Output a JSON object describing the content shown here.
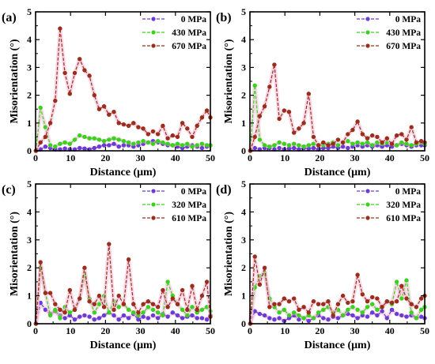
{
  "figure": {
    "colors": {
      "axis": "#000000",
      "s0": "#6a3bd8",
      "s1": "#3bd11e",
      "s2": "#9b2d1c",
      "glow": "#f3b9d4"
    }
  },
  "chart_data": [
    {
      "type": "line",
      "panel_label": "(a)",
      "xlabel": "Distance (μm)",
      "ylabel": "Misorientation (°)",
      "xlim": [
        0,
        50
      ],
      "ylim": [
        0,
        5
      ],
      "xticks": [
        0,
        10,
        20,
        30,
        40,
        50
      ],
      "yticks": [
        0,
        1,
        2,
        3,
        4,
        5
      ],
      "legend_position": "top-right",
      "x": [
        0.1,
        1.4,
        2.8,
        4.2,
        5.6,
        7.0,
        8.4,
        9.8,
        11.2,
        12.6,
        14.0,
        15.4,
        16.8,
        18.2,
        19.6,
        21.0,
        22.4,
        23.8,
        25.2,
        26.6,
        28.0,
        29.4,
        30.8,
        32.2,
        33.6,
        35.0,
        36.4,
        37.8,
        39.2,
        40.6,
        42.0,
        43.4,
        44.8,
        46.2,
        47.6,
        49.0,
        50.0
      ],
      "series": [
        {
          "name": "0 MPa",
          "values": [
            0.0,
            0.05,
            0.15,
            0.1,
            0.05,
            0.05,
            0.08,
            0.05,
            0.05,
            0.1,
            0.08,
            0.05,
            0.1,
            0.15,
            0.2,
            0.2,
            0.25,
            0.15,
            0.2,
            0.2,
            0.15,
            0.2,
            0.25,
            0.3,
            0.35,
            0.3,
            0.25,
            0.2,
            0.2,
            0.15,
            0.1,
            0.15,
            0.2,
            0.15,
            0.1,
            0.15,
            0.2
          ]
        },
        {
          "name": "430 MPa",
          "values": [
            0.0,
            1.55,
            0.85,
            0.2,
            0.15,
            0.25,
            0.3,
            0.25,
            0.4,
            0.55,
            0.5,
            0.45,
            0.45,
            0.4,
            0.35,
            0.4,
            0.45,
            0.4,
            0.35,
            0.3,
            0.25,
            0.3,
            0.35,
            0.3,
            0.25,
            0.35,
            0.3,
            0.25,
            0.2,
            0.25,
            0.2,
            0.25,
            0.15,
            0.2,
            0.25,
            0.2,
            0.2
          ]
        },
        {
          "name": "670 MPa",
          "values": [
            0.0,
            0.3,
            0.5,
            1.0,
            1.8,
            4.4,
            2.8,
            2.05,
            2.8,
            3.3,
            2.9,
            2.7,
            2.0,
            1.5,
            1.6,
            1.3,
            1.4,
            1.0,
            0.95,
            0.9,
            1.0,
            0.85,
            0.8,
            0.6,
            0.7,
            0.6,
            0.9,
            0.45,
            0.55,
            0.5,
            1.0,
            0.8,
            0.5,
            0.9,
            1.2,
            1.45,
            1.2
          ]
        }
      ]
    },
    {
      "type": "line",
      "panel_label": "(b)",
      "xlabel": "Distance (μm)",
      "ylabel": "Misorientation (°)",
      "xlim": [
        0,
        50
      ],
      "ylim": [
        0,
        5
      ],
      "xticks": [
        0,
        10,
        20,
        30,
        40,
        50
      ],
      "yticks": [
        0,
        1,
        2,
        3,
        4,
        5
      ],
      "legend_position": "top-right",
      "x": [
        0.1,
        1.4,
        2.8,
        4.2,
        5.6,
        7.0,
        8.4,
        9.8,
        11.2,
        12.6,
        14.0,
        15.4,
        16.8,
        18.2,
        19.6,
        21.0,
        22.4,
        23.8,
        25.2,
        26.6,
        28.0,
        29.4,
        30.8,
        32.2,
        33.6,
        35.0,
        36.4,
        37.8,
        39.2,
        40.6,
        42.0,
        43.4,
        44.8,
        46.2,
        47.6,
        49.0,
        50.0
      ],
      "series": [
        {
          "name": "0 MPa",
          "values": [
            0.0,
            0.1,
            0.05,
            0.1,
            0.1,
            0.05,
            0.1,
            0.05,
            0.08,
            0.1,
            0.05,
            0.1,
            0.08,
            0.1,
            0.05,
            0.1,
            0.1,
            0.15,
            0.1,
            0.15,
            0.1,
            0.15,
            0.2,
            0.15,
            0.2,
            0.15,
            0.2,
            0.15,
            0.2,
            0.15,
            0.2,
            0.25,
            0.2,
            0.15,
            0.2,
            0.2,
            0.2
          ]
        },
        {
          "name": "430 MPa",
          "values": [
            0.0,
            2.35,
            0.4,
            0.2,
            0.15,
            0.2,
            0.3,
            0.25,
            0.2,
            0.25,
            0.2,
            0.15,
            0.2,
            0.25,
            0.2,
            0.2,
            0.25,
            0.3,
            0.2,
            0.3,
            0.35,
            0.25,
            0.3,
            0.25,
            0.3,
            0.2,
            0.3,
            0.25,
            0.3,
            0.25,
            0.2,
            0.3,
            0.25,
            0.2,
            0.25,
            0.3,
            0.25
          ]
        },
        {
          "name": "670 MPa",
          "values": [
            0.0,
            0.5,
            1.25,
            1.6,
            2.3,
            3.1,
            1.15,
            1.45,
            1.4,
            0.65,
            0.8,
            1.0,
            2.05,
            0.5,
            0.2,
            0.3,
            0.2,
            0.25,
            0.4,
            0.3,
            0.6,
            0.75,
            1.05,
            0.6,
            0.45,
            0.55,
            0.5,
            0.3,
            0.45,
            0.25,
            0.55,
            0.6,
            0.4,
            0.85,
            0.3,
            0.35,
            0.3
          ]
        }
      ]
    },
    {
      "type": "line",
      "panel_label": "(c)",
      "xlabel": "Distance (μm)",
      "ylabel": "Misorientation (°)",
      "xlim": [
        0,
        50
      ],
      "ylim": [
        0,
        5
      ],
      "xticks": [
        0,
        10,
        20,
        30,
        40,
        50
      ],
      "yticks": [
        0,
        1,
        2,
        3,
        4,
        5
      ],
      "legend_position": "top-right",
      "x": [
        0.1,
        1.4,
        2.8,
        4.2,
        5.6,
        7.0,
        8.4,
        9.8,
        11.2,
        12.6,
        14.0,
        15.4,
        16.8,
        18.2,
        19.6,
        21.0,
        22.4,
        23.8,
        25.2,
        26.6,
        28.0,
        29.4,
        30.8,
        32.2,
        33.6,
        35.0,
        36.4,
        37.8,
        39.2,
        40.6,
        42.0,
        43.4,
        44.8,
        46.2,
        47.6,
        49.0,
        50.0
      ],
      "series": [
        {
          "name": "0 MPa",
          "values": [
            0.0,
            0.75,
            0.5,
            0.35,
            0.45,
            0.3,
            0.2,
            0.3,
            0.15,
            0.25,
            0.3,
            0.25,
            0.15,
            0.2,
            0.3,
            0.4,
            0.3,
            0.15,
            0.3,
            0.2,
            0.35,
            0.15,
            0.25,
            0.2,
            0.3,
            0.2,
            0.35,
            0.25,
            0.4,
            0.3,
            0.2,
            0.25,
            0.3,
            0.2,
            0.2,
            0.15,
            0.3
          ]
        },
        {
          "name": "320 MPa",
          "values": [
            0.0,
            2.0,
            1.1,
            0.3,
            0.5,
            0.2,
            0.6,
            0.4,
            0.5,
            0.9,
            1.7,
            0.9,
            0.4,
            0.7,
            1.0,
            0.4,
            0.8,
            0.6,
            0.7,
            0.5,
            0.4,
            0.3,
            0.4,
            0.6,
            0.5,
            0.4,
            0.3,
            1.5,
            1.0,
            0.7,
            0.5,
            0.3,
            0.6,
            0.4,
            0.5,
            0.6,
            0.45
          ]
        },
        {
          "name": "610 MPa",
          "values": [
            0.0,
            2.2,
            1.1,
            1.1,
            0.7,
            0.5,
            0.4,
            1.2,
            0.5,
            0.9,
            2.0,
            0.8,
            0.7,
            1.0,
            0.6,
            2.85,
            0.5,
            1.0,
            0.7,
            2.3,
            0.7,
            0.4,
            0.7,
            0.8,
            0.7,
            0.6,
            1.2,
            0.6,
            0.9,
            0.7,
            1.2,
            0.5,
            1.35,
            0.5,
            1.0,
            1.5,
            0.25
          ]
        }
      ]
    },
    {
      "type": "line",
      "panel_label": "(d)",
      "xlabel": "Distance (μm)",
      "ylabel": "Misorientation (°)",
      "xlim": [
        0,
        50
      ],
      "ylim": [
        0,
        5
      ],
      "xticks": [
        0,
        10,
        20,
        30,
        40,
        50
      ],
      "yticks": [
        0,
        1,
        2,
        3,
        4,
        5
      ],
      "legend_position": "top-right",
      "x": [
        0.1,
        1.4,
        2.8,
        4.2,
        5.6,
        7.0,
        8.4,
        9.8,
        11.2,
        12.6,
        14.0,
        15.4,
        16.8,
        18.2,
        19.6,
        21.0,
        22.4,
        23.8,
        25.2,
        26.6,
        28.0,
        29.4,
        30.8,
        32.2,
        33.6,
        35.0,
        36.4,
        37.8,
        39.2,
        40.6,
        42.0,
        43.4,
        44.8,
        46.2,
        47.6,
        49.0,
        50.0
      ],
      "series": [
        {
          "name": "0 MPa",
          "values": [
            0.0,
            0.45,
            0.35,
            0.3,
            0.2,
            0.15,
            0.2,
            0.1,
            0.2,
            0.3,
            0.15,
            0.2,
            0.1,
            0.2,
            0.3,
            0.2,
            0.15,
            0.25,
            0.2,
            0.3,
            0.35,
            0.3,
            0.2,
            0.3,
            0.25,
            0.4,
            0.3,
            0.45,
            0.2,
            0.5,
            0.35,
            0.3,
            0.25,
            0.3,
            0.2,
            0.25,
            0.2
          ]
        },
        {
          "name": "320 MPa",
          "values": [
            0.0,
            1.3,
            1.7,
            1.8,
            0.9,
            0.6,
            0.4,
            0.5,
            0.3,
            0.4,
            0.3,
            0.2,
            0.3,
            0.2,
            0.4,
            0.5,
            0.6,
            0.4,
            0.5,
            0.3,
            0.5,
            0.6,
            0.5,
            0.4,
            0.6,
            0.7,
            0.5,
            0.6,
            0.8,
            0.7,
            1.5,
            0.9,
            1.55,
            0.4,
            0.2,
            0.5,
            0.6
          ]
        },
        {
          "name": "610 MPa",
          "values": [
            0.0,
            2.4,
            1.4,
            2.0,
            0.6,
            0.7,
            0.7,
            0.9,
            0.8,
            0.9,
            0.5,
            0.6,
            0.4,
            0.8,
            0.7,
            0.7,
            0.8,
            0.3,
            0.7,
            1.0,
            0.75,
            0.8,
            1.75,
            1.05,
            0.8,
            0.95,
            0.9,
            0.6,
            0.8,
            0.75,
            0.8,
            1.35,
            0.9,
            0.7,
            0.6,
            0.9,
            1.0
          ]
        }
      ]
    }
  ]
}
